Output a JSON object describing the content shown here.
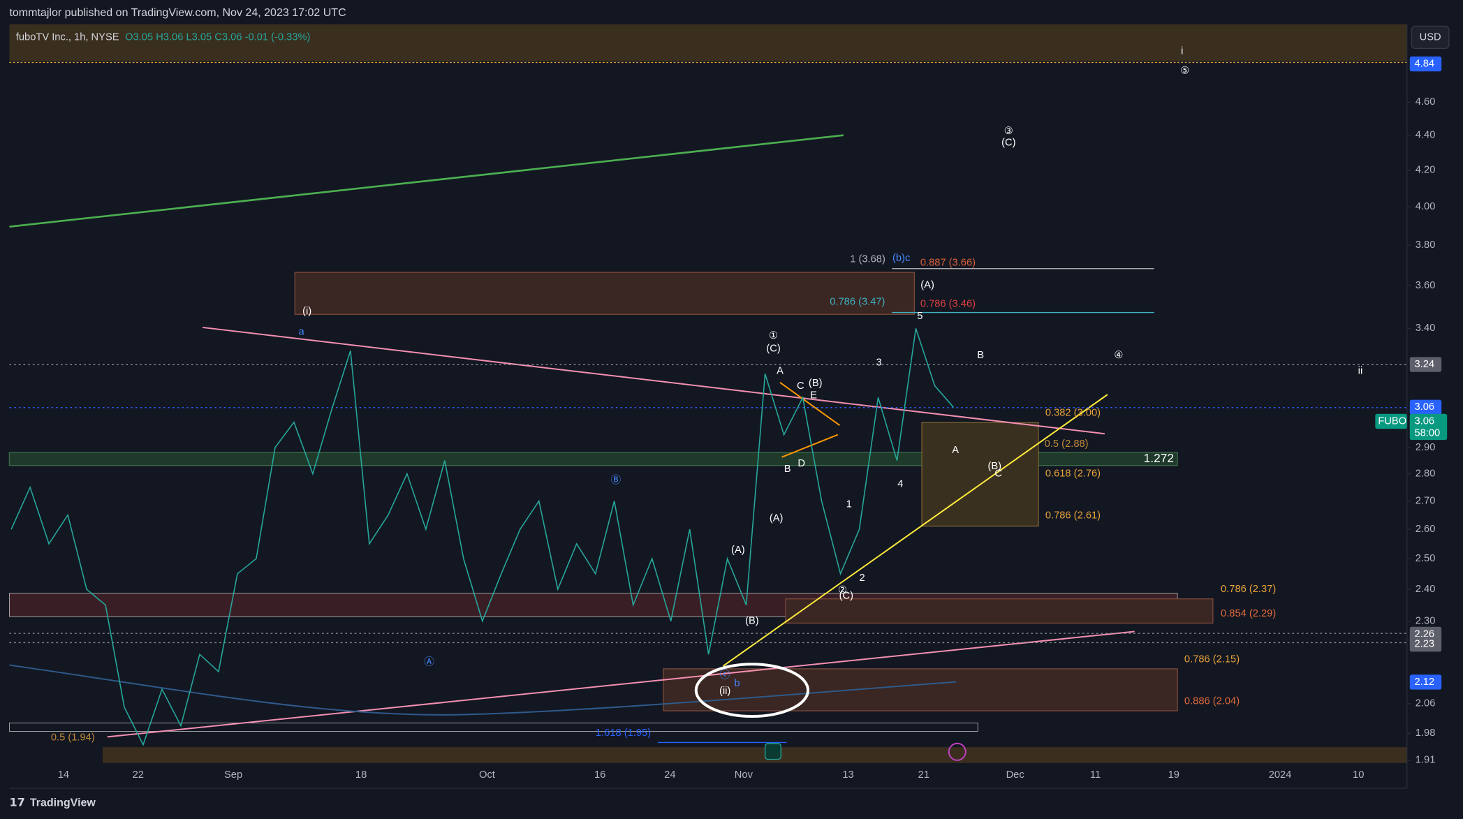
{
  "header": {
    "publisher": "tommtajlor published on TradingView.com, Nov 24, 2023 17:02 UTC",
    "legend": "fuboTV Inc., 1h, NYSE",
    "ohlc": "O3.05 H3.06 L3.05 C3.06 -0.01 (-0.33%)",
    "currency": "USD",
    "logo": "TradingView"
  },
  "chart_data": {
    "type": "line",
    "color": "#26a69a",
    "log_scale": true,
    "values": [
      2.6,
      2.75,
      2.55,
      2.65,
      2.4,
      2.35,
      2.05,
      1.95,
      2.1,
      2.0,
      2.2,
      2.15,
      2.45,
      2.5,
      2.9,
      3.0,
      2.8,
      3.05,
      3.3,
      2.55,
      2.65,
      2.8,
      2.6,
      2.85,
      2.5,
      2.3,
      2.45,
      2.6,
      2.7,
      2.4,
      2.55,
      2.45,
      2.7,
      2.35,
      2.5,
      2.3,
      2.6,
      2.2,
      2.5,
      2.35,
      3.2,
      2.95,
      3.1,
      2.7,
      2.45,
      2.6,
      3.1,
      2.85,
      3.4,
      3.15,
      3.06
    ],
    "ylim": [
      1.84,
      5.11
    ],
    "yticks": [
      {
        "value": 4.6,
        "label": "4.60"
      },
      {
        "value": 4.4,
        "label": "4.40"
      },
      {
        "value": 4.2,
        "label": "4.20"
      },
      {
        "value": 4.0,
        "label": "4.00"
      },
      {
        "value": 3.8,
        "label": "3.80"
      },
      {
        "value": 3.6,
        "label": "3.60"
      },
      {
        "value": 3.4,
        "label": "3.40"
      },
      {
        "value": 2.9,
        "label": "2.90"
      },
      {
        "value": 2.8,
        "label": "2.80"
      },
      {
        "value": 2.7,
        "label": "2.70"
      },
      {
        "value": 2.6,
        "label": "2.60"
      },
      {
        "value": 2.5,
        "label": "2.50"
      },
      {
        "value": 2.4,
        "label": "2.40"
      },
      {
        "value": 2.3,
        "label": "2.30"
      },
      {
        "value": 2.06,
        "label": "2.06"
      },
      {
        "value": 1.98,
        "label": "1.98"
      },
      {
        "value": 1.91,
        "label": "1.91"
      }
    ],
    "xticks": [
      "14",
      "22",
      "Sep",
      "18",
      "Oct",
      "16",
      "24",
      "Nov",
      "13",
      "21",
      "Dec",
      "11",
      "19",
      "2024",
      "10"
    ],
    "price_badges": [
      {
        "value": 4.84,
        "label": "4.84",
        "color": "#2962ff"
      },
      {
        "value": 3.24,
        "label": "3.24",
        "color": "#5d606b"
      },
      {
        "value": 3.06,
        "label": "3.06",
        "color": "#2962ff"
      },
      {
        "value": 2.26,
        "label": "2.26",
        "color": "#5d606b"
      },
      {
        "value": 2.23,
        "label": "2.23",
        "color": "#5d606b"
      },
      {
        "value": 2.12,
        "label": "2.12",
        "color": "#2962ff"
      }
    ],
    "last": {
      "symbol": "FUBO",
      "price": "3.06",
      "countdown": "58:00"
    },
    "annotations": [
      {
        "text": "(i)",
        "color": "#ffffff"
      },
      {
        "text": "a",
        "color": "#448aff"
      },
      {
        "text": "Ⓑ",
        "color": "#448aff"
      },
      {
        "text": "Ⓐ",
        "color": "#448aff"
      },
      {
        "text": "ⓒ",
        "color": "#448aff"
      },
      {
        "text": "b",
        "color": "#448aff"
      },
      {
        "text": "(ii)",
        "color": "#ffffff"
      },
      {
        "text": "①",
        "color": "#ffffff"
      },
      {
        "text": "(C)",
        "color": "#ffffff"
      },
      {
        "text": "A",
        "color": "#ffffff"
      },
      {
        "text": "C",
        "color": "#ffffff"
      },
      {
        "text": "(B)",
        "color": "#ffffff"
      },
      {
        "text": "E",
        "color": "#ffffff"
      },
      {
        "text": "B",
        "color": "#ffffff"
      },
      {
        "text": "D",
        "color": "#ffffff"
      },
      {
        "text": "(A)",
        "color": "#ffffff"
      },
      {
        "text": "(A)",
        "color": "#ffffff"
      },
      {
        "text": "(B)",
        "color": "#ffffff"
      },
      {
        "text": "1",
        "color": "#ffffff"
      },
      {
        "text": "2",
        "color": "#ffffff"
      },
      {
        "text": "②",
        "color": "#ffffff"
      },
      {
        "text": "(C)",
        "color": "#ffffff"
      },
      {
        "text": "3",
        "color": "#ffffff"
      },
      {
        "text": "4",
        "color": "#ffffff"
      },
      {
        "text": "5",
        "color": "#ffffff"
      },
      {
        "text": "(A)",
        "color": "#ffffff"
      },
      {
        "text": "B",
        "color": "#ffffff"
      },
      {
        "text": "A",
        "color": "#ffffff"
      },
      {
        "text": "(B)",
        "color": "#ffffff"
      },
      {
        "text": "C",
        "color": "#ffffff"
      },
      {
        "text": "④",
        "color": "#ffffff"
      },
      {
        "text": "③",
        "color": "#ffffff"
      },
      {
        "text": "(C)",
        "color": "#ffffff"
      },
      {
        "text": "i",
        "color": "#ffffff"
      },
      {
        "text": "⑤",
        "color": "#ffffff"
      },
      {
        "text": "ii",
        "color": "#ffffff"
      },
      {
        "text": "(b)c",
        "color": "#448aff"
      },
      {
        "text": "1 (3.68)",
        "color": "#b2b5be"
      },
      {
        "text": "0.887 (3.66)",
        "color": "#e0603a"
      },
      {
        "text": "0.786 (3.47)",
        "color": "#3fb3c4"
      },
      {
        "text": "0.786 (3.46)",
        "color": "#e04040"
      },
      {
        "text": "0.382 (3.00)",
        "color": "#e8a33a"
      },
      {
        "text": "0.5 (2.88)",
        "color": "#c08a3a"
      },
      {
        "text": "0.618 (2.76)",
        "color": "#e8a33a"
      },
      {
        "text": "0.786 (2.61)",
        "color": "#e8a33a"
      },
      {
        "text": "0.786 (2.37)",
        "color": "#e8a33a"
      },
      {
        "text": "0.854 (2.29)",
        "color": "#e06a3a"
      },
      {
        "text": "0.786 (2.15)",
        "color": "#e8a33a"
      },
      {
        "text": "0.886 (2.04)",
        "color": "#e06a3a"
      },
      {
        "text": "0.5 (1.94)",
        "color": "#c08a3a"
      },
      {
        "text": "1.618 (1.95)",
        "color": "#2962ff"
      },
      {
        "text": "1.272",
        "color": "#ffffff"
      }
    ]
  }
}
